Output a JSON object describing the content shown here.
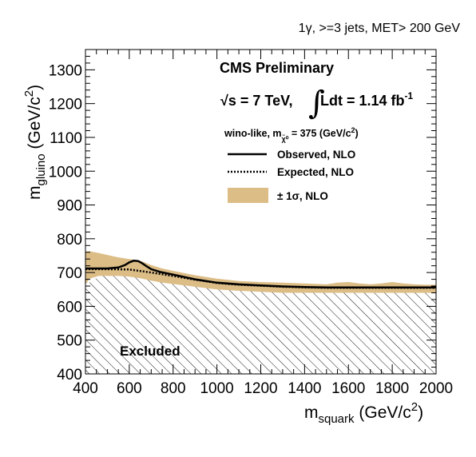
{
  "chart_data": {
    "type": "line",
    "header": "1γ, >=3 jets, MET> 200 GeV",
    "experiment": "CMS Preliminary",
    "energy_label": "√s = 7 TeV,",
    "lumi_label": "Ldt = 1.14 fb",
    "lumi_exp": "-1",
    "lumi_integral": "∫",
    "model_label": "wino-like,  m",
    "model_sub": "χ̃⁰",
    "model_value": " = 375 (GeV/c",
    "model_exp": "2",
    "model_close": ")",
    "xlabel_main": "m",
    "xlabel_sub": "squark",
    "xlabel_unit": " (GeV/c",
    "xlabel_exp": "2",
    "xlabel_close": ")",
    "ylabel_main": "m",
    "ylabel_sub": "gluino",
    "ylabel_unit": " (GeV/c",
    "ylabel_exp": "2",
    "ylabel_close": ")",
    "xlim": [
      400,
      2000
    ],
    "ylim": [
      400,
      1360
    ],
    "xticks": [
      400,
      600,
      800,
      1000,
      1200,
      1400,
      1600,
      1800,
      2000
    ],
    "yticks": [
      400,
      500,
      600,
      700,
      800,
      900,
      1000,
      1100,
      1200,
      1300
    ],
    "excluded_label": "Excluded",
    "legend": [
      {
        "name": "Observed, NLO",
        "style": "solid"
      },
      {
        "name": "Expected, NLO",
        "style": "dotted"
      },
      {
        "name": "± 1σ, NLO",
        "style": "band"
      }
    ],
    "band_color": "#dcbd86",
    "series": [
      {
        "name": "Observed, NLO",
        "x": [
          400,
          450,
          500,
          550,
          580,
          600,
          620,
          640,
          660,
          680,
          700,
          740,
          800,
          900,
          1000,
          1100,
          1200,
          1300,
          1400,
          1500,
          1600,
          1700,
          1800,
          1900,
          2000
        ],
        "y": [
          712,
          712,
          712,
          715,
          722,
          730,
          735,
          734,
          727,
          718,
          710,
          702,
          694,
          680,
          670,
          665,
          662,
          659,
          657,
          656,
          656,
          656,
          656,
          656,
          656
        ]
      },
      {
        "name": "Expected, NLO",
        "x": [
          400,
          500,
          600,
          700,
          800,
          900,
          1000,
          1100,
          1200,
          1300,
          1400,
          1500,
          1600,
          1700,
          1800,
          1900,
          2000
        ],
        "y": [
          710,
          710,
          709,
          700,
          690,
          679,
          669,
          664,
          661,
          658,
          656,
          655,
          655,
          655,
          655,
          655,
          655
        ]
      }
    ],
    "band": {
      "x": [
        400,
        420,
        460,
        500,
        550,
        600,
        650,
        700,
        750,
        800,
        900,
        1000,
        1100,
        1200,
        1300,
        1400,
        1500,
        1550,
        1600,
        1650,
        1700,
        1750,
        1800,
        1850,
        1900,
        1950,
        2000
      ],
      "upper": [
        762,
        763,
        758,
        752,
        745,
        740,
        735,
        722,
        712,
        705,
        692,
        682,
        675,
        672,
        670,
        668,
        665,
        670,
        672,
        668,
        665,
        668,
        672,
        668,
        665,
        664,
        664
      ],
      "lower": [
        665,
        682,
        690,
        690,
        690,
        688,
        683,
        676,
        670,
        666,
        658,
        650,
        646,
        643,
        640,
        640,
        640,
        640,
        640,
        640,
        640,
        640,
        640,
        640,
        640,
        640,
        640
      ]
    },
    "excluded_boundary": {
      "x": [
        400,
        420,
        460,
        500,
        550,
        600,
        650,
        700,
        800,
        1000,
        1200,
        1400,
        1600,
        1800,
        2000
      ],
      "y": [
        655,
        672,
        688,
        700,
        705,
        706,
        702,
        696,
        686,
        666,
        660,
        656,
        655,
        655,
        655
      ]
    }
  }
}
